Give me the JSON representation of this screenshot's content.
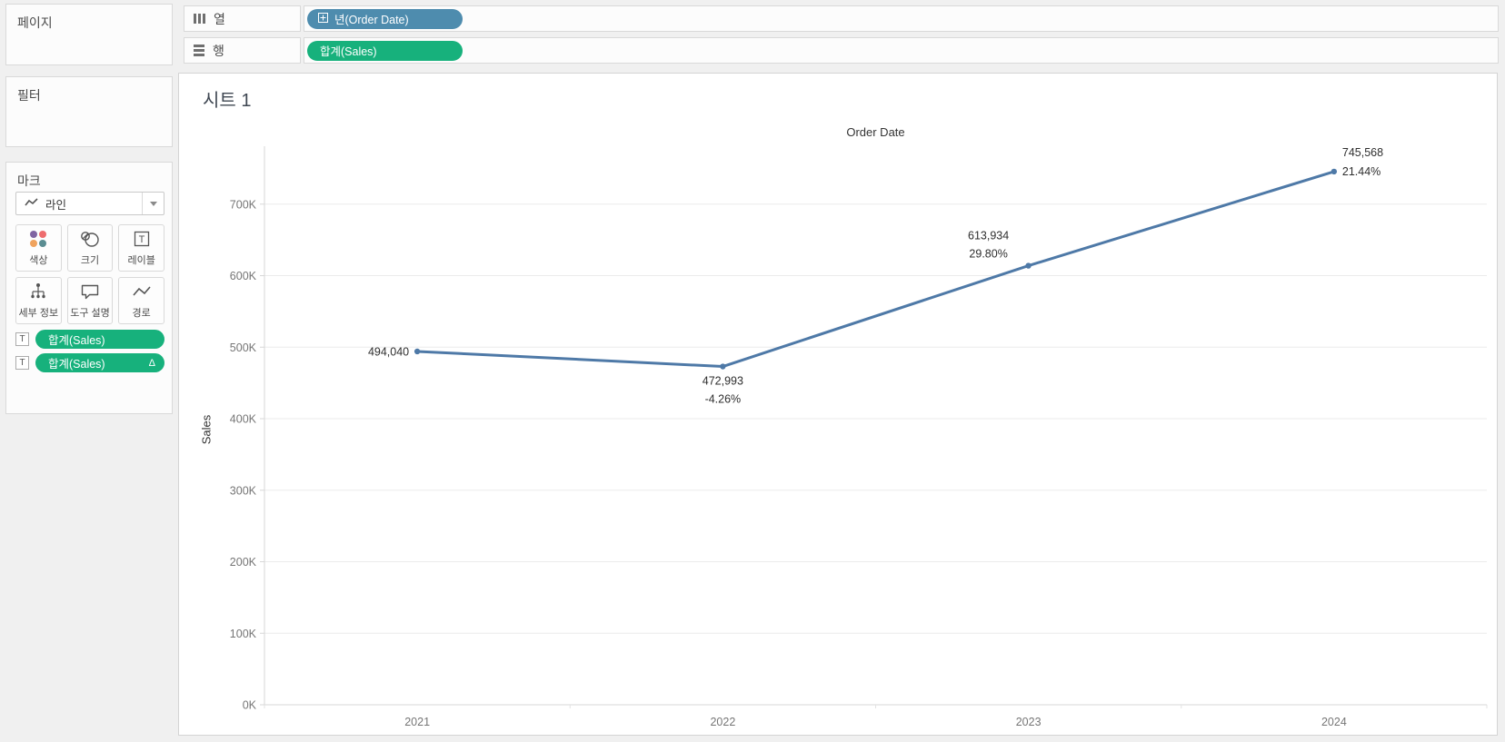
{
  "panels": {
    "pages": {
      "title": "페이지"
    },
    "filters": {
      "title": "필터"
    },
    "marks": {
      "title": "마크",
      "mark_type_label": "라인",
      "buttons": [
        {
          "label": "색상",
          "icon": "color-icon"
        },
        {
          "label": "크기",
          "icon": "size-icon"
        },
        {
          "label": "레이블",
          "icon": "label-icon"
        },
        {
          "label": "세부 정보",
          "icon": "detail-icon"
        },
        {
          "label": "도구 설명",
          "icon": "tooltip-icon"
        },
        {
          "label": "경로",
          "icon": "path-icon"
        }
      ],
      "pills": [
        {
          "prefix": "T",
          "text": "합계(Sales)",
          "badge": ""
        },
        {
          "prefix": "T",
          "text": "합계(Sales)",
          "badge": "Δ"
        }
      ]
    }
  },
  "shelves": {
    "columns": {
      "label": "열",
      "pill": {
        "text": "년(Order Date)",
        "color": "#4e8cae"
      }
    },
    "rows": {
      "label": "행",
      "pill": {
        "text": "합계(Sales)",
        "color": "#17b17c"
      }
    }
  },
  "sheet": {
    "title": "시트 1"
  },
  "chart_data": {
    "type": "line",
    "title": "Order Date",
    "ylabel": "Sales",
    "categories": [
      "2021",
      "2022",
      "2023",
      "2024"
    ],
    "series": [
      {
        "name": "합계(Sales)",
        "values": [
          494040,
          472993,
          613934,
          745568
        ]
      }
    ],
    "point_labels": [
      [
        "494,040"
      ],
      [
        "472,993",
        "-4.26%"
      ],
      [
        "613,934",
        "29.80%"
      ],
      [
        "745,568",
        "21.44%"
      ]
    ],
    "label_anchors": [
      "left",
      "below",
      "above-left",
      "right"
    ],
    "ylim": [
      0,
      781000
    ],
    "yticks": [
      0,
      100000,
      200000,
      300000,
      400000,
      500000,
      600000,
      700000
    ],
    "ytick_labels": [
      "0K",
      "100K",
      "200K",
      "300K",
      "400K",
      "500K",
      "600K",
      "700K"
    ],
    "grid": true,
    "legend": "none",
    "line_color": "#4e79a7"
  },
  "colors": {
    "pill_dimension_blue": "#4e8cae",
    "pill_measure_green": "#17b17c",
    "line_blue": "#4e79a7",
    "color_button_dots": [
      "#8064a2",
      "#ee6d6e",
      "#f0a35e",
      "#5b8d92"
    ]
  }
}
